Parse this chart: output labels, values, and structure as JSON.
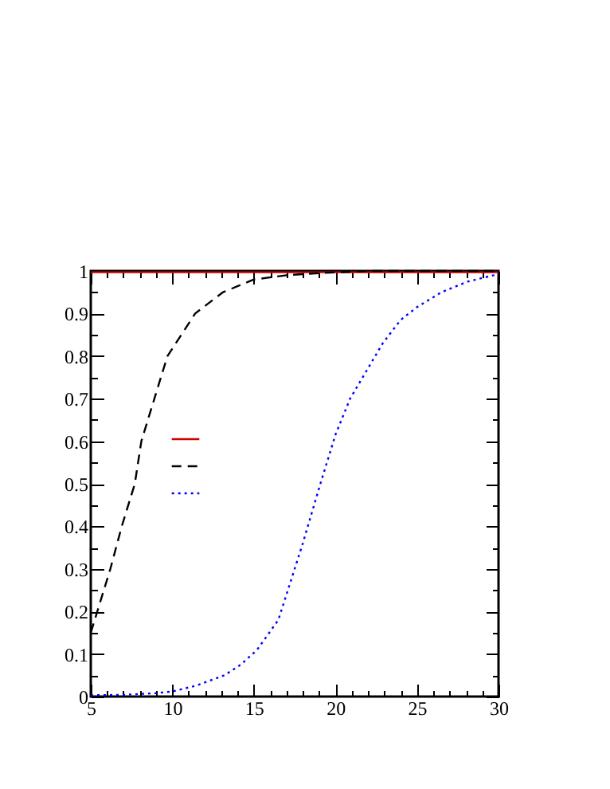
{
  "chart_data": {
    "type": "line",
    "xlim": [
      5,
      30
    ],
    "xticks": [
      5,
      {
        "value": 6,
        "label": null
      },
      {
        "value": 7,
        "label": null
      },
      {
        "value": 8,
        "label": null
      },
      {
        "value": 9,
        "label": null
      },
      10,
      {
        "value": 11,
        "label": null
      },
      {
        "value": 12,
        "label": null
      },
      {
        "value": 13,
        "label": null
      },
      {
        "value": 14,
        "label": null
      },
      15,
      {
        "value": 16,
        "label": null
      },
      {
        "value": 17,
        "label": null
      },
      {
        "value": 18,
        "label": null
      },
      {
        "value": 19,
        "label": null
      },
      20,
      {
        "value": 21,
        "label": null
      },
      {
        "value": 22,
        "label": null
      },
      {
        "value": 23,
        "label": null
      },
      {
        "value": 24,
        "label": null
      },
      25,
      {
        "value": 26,
        "label": null
      },
      {
        "value": 27,
        "label": null
      },
      {
        "value": 28,
        "label": null
      },
      {
        "value": 29,
        "label": null
      },
      30
    ],
    "ylim": [
      0,
      1
    ],
    "yticks": [
      0,
      {
        "value": 0.05,
        "label": null
      },
      0.1,
      {
        "value": 0.15,
        "label": null
      },
      0.2,
      {
        "value": 0.25,
        "label": null
      },
      0.3,
      {
        "value": 0.35,
        "label": null
      },
      0.4,
      {
        "value": 0.45,
        "label": null
      },
      0.5,
      {
        "value": 0.55,
        "label": null
      },
      0.6,
      {
        "value": 0.65,
        "label": null
      },
      0.7,
      {
        "value": 0.75,
        "label": null
      },
      0.8,
      {
        "value": 0.85,
        "label": null
      },
      0.9,
      {
        "value": 0.95,
        "label": null
      },
      1
    ],
    "grid": false,
    "series": [
      {
        "color": "#cc0000",
        "line_style": "solid",
        "x": [
          5,
          10,
          15,
          20,
          25,
          30
        ],
        "values": [
          0.997,
          0.997,
          0.997,
          0.997,
          0.997,
          0.997
        ]
      },
      {
        "color": "#000000",
        "line_style": "dashed",
        "x": [
          5,
          5.4,
          6.2,
          6.9,
          7.7,
          8.1,
          8.9,
          9.7,
          11.4,
          13.1,
          15,
          17,
          19,
          22,
          26,
          30
        ],
        "values": [
          0.15,
          0.2,
          0.3,
          0.4,
          0.5,
          0.6,
          0.7,
          0.8,
          0.9,
          0.95,
          0.98,
          0.99,
          0.995,
          1,
          1,
          1
        ]
      },
      {
        "color": "#0000ff",
        "line_style": "dotted",
        "x": [
          5,
          7,
          9,
          10,
          11.5,
          13.2,
          14.2,
          15.2,
          16.5,
          17,
          18,
          19,
          20,
          20.9,
          21.9,
          22.9,
          24,
          25,
          26.5,
          28.1,
          29.7,
          30
        ],
        "values": [
          0.003,
          0.004,
          0.008,
          0.012,
          0.026,
          0.05,
          0.075,
          0.11,
          0.18,
          0.24,
          0.36,
          0.49,
          0.615,
          0.7,
          0.765,
          0.83,
          0.885,
          0.915,
          0.95,
          0.975,
          0.99,
          0.995
        ]
      }
    ]
  }
}
